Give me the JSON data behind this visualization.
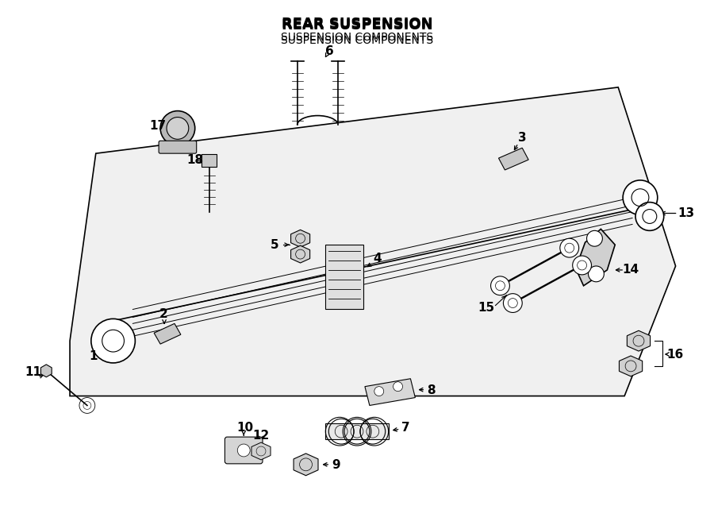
{
  "title": "REAR SUSPENSION",
  "subtitle": "SUSPENSION COMPONENTS",
  "bg_color": "#ffffff",
  "line_color": "#000000",
  "fig_width": 9.0,
  "fig_height": 6.61,
  "dpi": 100
}
